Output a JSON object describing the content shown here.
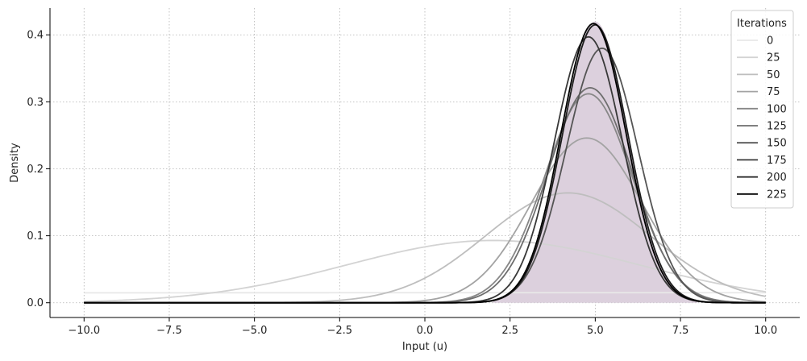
{
  "chart_data": {
    "type": "line",
    "title": "",
    "xlabel": "Input (u)",
    "ylabel": "Density",
    "xlim": [
      -11.0,
      11.0
    ],
    "ylim": [
      -0.022,
      0.44
    ],
    "xticks": [
      -10.0,
      -7.5,
      -5.0,
      -2.5,
      0.0,
      2.5,
      5.0,
      7.5,
      10.0
    ],
    "xtick_labels": [
      "−10.0",
      "−7.5",
      "−5.0",
      "−2.5",
      "0.0",
      "2.5",
      "5.0",
      "7.5",
      "10.0"
    ],
    "yticks": [
      0.0,
      0.1,
      0.2,
      0.3,
      0.4
    ],
    "ytick_labels": [
      "0.0",
      "0.1",
      "0.2",
      "0.3",
      "0.4"
    ],
    "grid": true,
    "legend_title": "Iterations",
    "legend_position": "top-right",
    "target": {
      "mean": 5.0,
      "sd": 0.95,
      "x_range": [
        2.0,
        8.0
      ],
      "color": "#dcd0dd"
    },
    "series": [
      {
        "name": "0",
        "mean": 5.0,
        "sd": 100.0,
        "height": 0.015,
        "color": "#e8e8e8"
      },
      {
        "name": "25",
        "mean": 2.0,
        "sd": 4.3,
        "height": 0.093,
        "color": "#d3d3d3"
      },
      {
        "name": "50",
        "mean": 4.2,
        "sd": 2.43,
        "height": 0.164,
        "color": "#bebebe"
      },
      {
        "name": "75",
        "mean": 4.75,
        "sd": 1.62,
        "height": 0.246,
        "color": "#a3a3a3"
      },
      {
        "name": "100",
        "mean": 4.8,
        "sd": 1.28,
        "height": 0.312,
        "color": "#878787"
      },
      {
        "name": "125",
        "mean": 4.85,
        "sd": 1.24,
        "height": 0.321,
        "color": "#6e6e6e"
      },
      {
        "name": "150",
        "mean": 5.2,
        "sd": 1.05,
        "height": 0.38,
        "color": "#555555"
      },
      {
        "name": "175",
        "mean": 4.8,
        "sd": 1.0,
        "height": 0.397,
        "color": "#383838"
      },
      {
        "name": "200",
        "mean": 5.0,
        "sd": 0.96,
        "height": 0.415,
        "color": "#1c1c1c"
      },
      {
        "name": "225",
        "mean": 4.95,
        "sd": 0.955,
        "height": 0.417,
        "color": "#000000"
      }
    ],
    "x_range": [
      -10.0,
      10.0
    ]
  }
}
